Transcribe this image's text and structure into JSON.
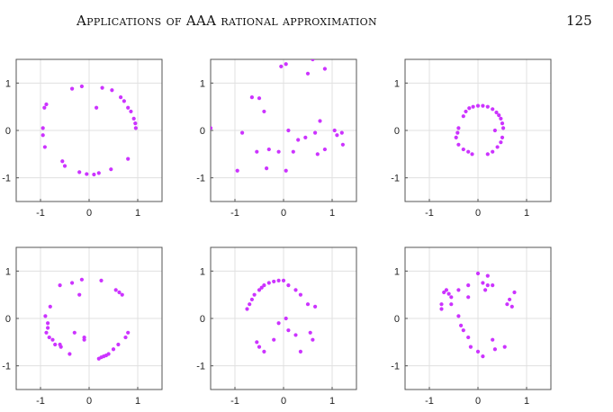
{
  "header": {
    "running_title": "Applications of AAA rational approximation",
    "page_number": "125"
  },
  "style": {
    "point_color": "#cc33ff",
    "grid_color": "#e0e0e0",
    "frame_color": "#555555"
  },
  "chart_data": [
    {
      "type": "scatter",
      "title": "",
      "xlabel": "",
      "ylabel": "",
      "xlim": [
        -1.5,
        1.5
      ],
      "ylim": [
        -1.5,
        1.5
      ],
      "xticks": [
        -1,
        0,
        1
      ],
      "yticks": [
        1,
        0,
        -1
      ],
      "xtick_labels": [
        "-1",
        "0",
        "1"
      ],
      "ytick_labels": [
        "1",
        "0",
        "-1"
      ],
      "grid": true,
      "series": [
        {
          "x": [
            -0.35,
            -0.15,
            0.27,
            0.47,
            0.65,
            0.72,
            0.8,
            0.86,
            0.92,
            0.95,
            0.96,
            -0.88,
            -0.92,
            -0.95,
            -0.95,
            -0.91,
            -0.55,
            -0.5,
            -0.2,
            -0.05,
            0.1,
            0.2,
            0.45,
            0.8,
            0.15
          ],
          "y": [
            0.88,
            0.93,
            0.9,
            0.85,
            0.7,
            0.62,
            0.48,
            0.4,
            0.25,
            0.15,
            0.05,
            0.55,
            0.48,
            0.05,
            -0.1,
            -0.35,
            -0.65,
            -0.75,
            -0.88,
            -0.92,
            -0.93,
            -0.9,
            -0.82,
            -0.6,
            0.48
          ]
        }
      ]
    },
    {
      "type": "scatter",
      "title": "",
      "xlabel": "",
      "ylabel": "",
      "xlim": [
        -1.5,
        1.5
      ],
      "ylim": [
        -1.5,
        1.5
      ],
      "xticks": [
        -1,
        0,
        1
      ],
      "yticks": [
        1,
        0,
        -1
      ],
      "xtick_labels": [
        "-1",
        "0",
        "1"
      ],
      "ytick_labels": [
        "1",
        "0",
        "-1"
      ],
      "grid": true,
      "series": [
        {
          "x": [
            -1.5,
            -0.95,
            -0.85,
            -0.65,
            -0.5,
            -0.55,
            -0.35,
            -0.3,
            -0.1,
            0.05,
            0.1,
            0.2,
            0.3,
            0.45,
            0.6,
            0.65,
            0.75,
            0.85,
            1.05,
            1.1,
            -0.4,
            0.5,
            0.7,
            0.85,
            1.2,
            1.22,
            0.05,
            -0.05
          ],
          "y": [
            0.05,
            -0.85,
            -0.05,
            0.7,
            0.68,
            -0.45,
            -0.8,
            -0.4,
            -0.45,
            -0.85,
            0.0,
            -0.45,
            -0.2,
            -0.15,
            1.5,
            -0.05,
            0.2,
            1.3,
            0.0,
            -0.1,
            0.4,
            1.2,
            -0.5,
            -0.4,
            -0.05,
            -0.3,
            1.4,
            1.35
          ]
        }
      ]
    },
    {
      "type": "scatter",
      "title": "",
      "xlabel": "",
      "ylabel": "",
      "xlim": [
        -1.5,
        1.5
      ],
      "ylim": [
        -1.5,
        1.5
      ],
      "xticks": [
        -1,
        0,
        1
      ],
      "yticks": [
        1,
        0,
        -1
      ],
      "xtick_labels": [
        "-1",
        "0",
        "1"
      ],
      "ytick_labels": [
        "1",
        "0",
        "-1"
      ],
      "grid": true,
      "series": [
        {
          "x": [
            -0.3,
            -0.25,
            -0.18,
            -0.1,
            0.0,
            0.1,
            0.2,
            0.3,
            0.38,
            0.43,
            0.47,
            0.5,
            0.52,
            -0.4,
            -0.42,
            -0.45,
            -0.4,
            -0.3,
            -0.2,
            -0.12,
            0.2,
            0.3,
            0.4,
            0.47,
            0.5,
            0.35
          ],
          "y": [
            0.3,
            0.4,
            0.47,
            0.5,
            0.52,
            0.52,
            0.5,
            0.45,
            0.38,
            0.32,
            0.25,
            0.15,
            0.05,
            0.05,
            -0.05,
            -0.15,
            -0.3,
            -0.4,
            -0.45,
            -0.5,
            -0.5,
            -0.45,
            -0.35,
            -0.25,
            -0.15,
            0.0
          ]
        }
      ]
    },
    {
      "type": "scatter",
      "title": "",
      "xlabel": "",
      "ylabel": "",
      "xlim": [
        -1.5,
        1.5
      ],
      "ylim": [
        -1.5,
        1.5
      ],
      "xticks": [
        -1,
        0,
        1
      ],
      "yticks": [
        1,
        0,
        -1
      ],
      "xtick_labels": [
        "-1",
        "0",
        "1"
      ],
      "ytick_labels": [
        "1",
        "0",
        "-1"
      ],
      "grid": true,
      "series": [
        {
          "x": [
            -0.9,
            -0.8,
            -0.6,
            -0.35,
            -0.15,
            0.25,
            0.55,
            0.62,
            0.68,
            -0.85,
            -0.85,
            -0.88,
            -0.82,
            -0.75,
            -0.7,
            -0.6,
            -0.58,
            -0.4,
            -0.3,
            -0.1,
            0.2,
            0.25,
            0.3,
            0.35,
            0.4,
            0.5,
            0.6,
            0.75,
            0.8,
            -0.2,
            -0.1
          ],
          "y": [
            0.05,
            0.25,
            0.7,
            0.75,
            0.82,
            0.8,
            0.6,
            0.55,
            0.5,
            -0.1,
            -0.2,
            -0.3,
            -0.4,
            -0.45,
            -0.55,
            -0.55,
            -0.6,
            -0.75,
            -0.3,
            -0.4,
            -0.85,
            -0.82,
            -0.8,
            -0.78,
            -0.75,
            -0.65,
            -0.55,
            -0.4,
            -0.3,
            0.5,
            -0.45
          ]
        }
      ]
    },
    {
      "type": "scatter",
      "title": "",
      "xlabel": "",
      "ylabel": "",
      "xlim": [
        -1.5,
        1.5
      ],
      "ylim": [
        -1.5,
        1.5
      ],
      "xticks": [
        -1,
        0,
        1
      ],
      "yticks": [
        1,
        0,
        -1
      ],
      "xtick_labels": [
        "-1",
        "0",
        "1"
      ],
      "ytick_labels": [
        "1",
        "0",
        "-1"
      ],
      "grid": true,
      "series": [
        {
          "x": [
            -0.75,
            -0.7,
            -0.65,
            -0.6,
            -0.5,
            -0.45,
            -0.4,
            -0.3,
            -0.2,
            -0.1,
            0.0,
            0.1,
            0.25,
            0.35,
            0.5,
            0.65,
            -0.55,
            -0.5,
            -0.4,
            -0.2,
            0.1,
            0.25,
            0.35,
            0.55,
            0.6,
            0.05,
            -0.1
          ],
          "y": [
            0.2,
            0.3,
            0.4,
            0.5,
            0.6,
            0.65,
            0.7,
            0.75,
            0.78,
            0.8,
            0.8,
            0.7,
            0.6,
            0.5,
            0.3,
            0.25,
            -0.5,
            -0.6,
            -0.7,
            -0.45,
            -0.25,
            -0.35,
            -0.7,
            -0.3,
            -0.45,
            0.0,
            -0.1
          ]
        }
      ]
    },
    {
      "type": "scatter",
      "title": "",
      "xlabel": "",
      "ylabel": "",
      "xlim": [
        -1.5,
        1.5
      ],
      "ylim": [
        -1.5,
        1.5
      ],
      "xticks": [
        -1,
        0,
        1
      ],
      "yticks": [
        1,
        0,
        -1
      ],
      "xtick_labels": [
        "-1",
        "0",
        "1"
      ],
      "ytick_labels": [
        "1",
        "0",
        "-1"
      ],
      "grid": true,
      "series": [
        {
          "x": [
            -0.75,
            -0.7,
            -0.65,
            -0.6,
            -0.55,
            -0.4,
            -0.2,
            0.0,
            0.1,
            0.2,
            0.2,
            0.3,
            0.6,
            0.65,
            0.7,
            0.75,
            -0.75,
            -0.55,
            -0.4,
            -0.35,
            -0.3,
            -0.2,
            -0.15,
            0.0,
            0.1,
            0.3,
            0.35,
            0.55,
            -0.2,
            0.15
          ],
          "y": [
            0.3,
            0.55,
            0.6,
            0.52,
            0.45,
            0.6,
            0.7,
            0.95,
            0.75,
            0.7,
            0.9,
            0.7,
            0.3,
            0.4,
            0.25,
            0.55,
            0.2,
            0.3,
            0.05,
            -0.15,
            -0.25,
            -0.4,
            -0.6,
            -0.7,
            -0.8,
            -0.45,
            -0.65,
            -0.6,
            0.45,
            0.6
          ]
        }
      ]
    }
  ]
}
